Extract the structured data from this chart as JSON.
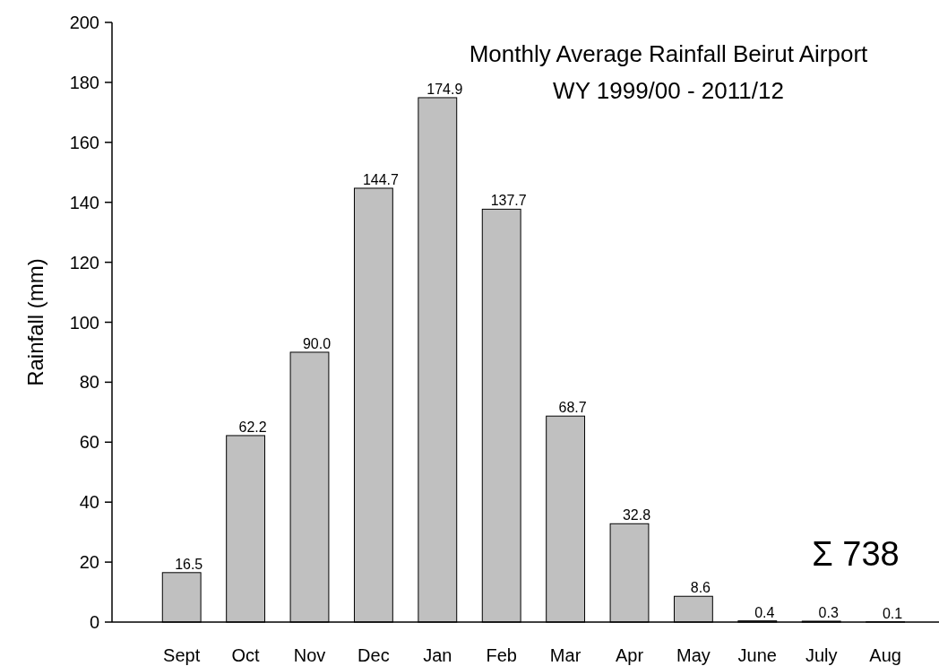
{
  "chart_data": {
    "type": "bar",
    "title": "Monthly Average Rainfall Beirut Airport",
    "subtitle": "WY 1999/00 - 2011/12",
    "ylabel": "Rainfall (mm)",
    "categories": [
      "Sept",
      "Oct",
      "Nov",
      "Dec",
      "Jan",
      "Feb",
      "Mar",
      "Apr",
      "May",
      "June",
      "July",
      "Aug"
    ],
    "values": [
      16.5,
      62.2,
      90.0,
      144.7,
      174.9,
      137.7,
      68.7,
      32.8,
      8.6,
      0.4,
      0.3,
      0.1
    ],
    "value_labels": [
      "16.5",
      "62.2",
      "90.0",
      "144.7",
      "174.9",
      "137.7",
      "68.7",
      "32.8",
      "8.6",
      "0.4",
      "0.3",
      "0.1"
    ],
    "color": "#c0c0c0",
    "ylim": [
      0,
      200
    ],
    "yticks": [
      0,
      20,
      40,
      60,
      80,
      100,
      120,
      140,
      160,
      180,
      200
    ],
    "grid": false,
    "annotations": [
      "Σ 738"
    ]
  }
}
